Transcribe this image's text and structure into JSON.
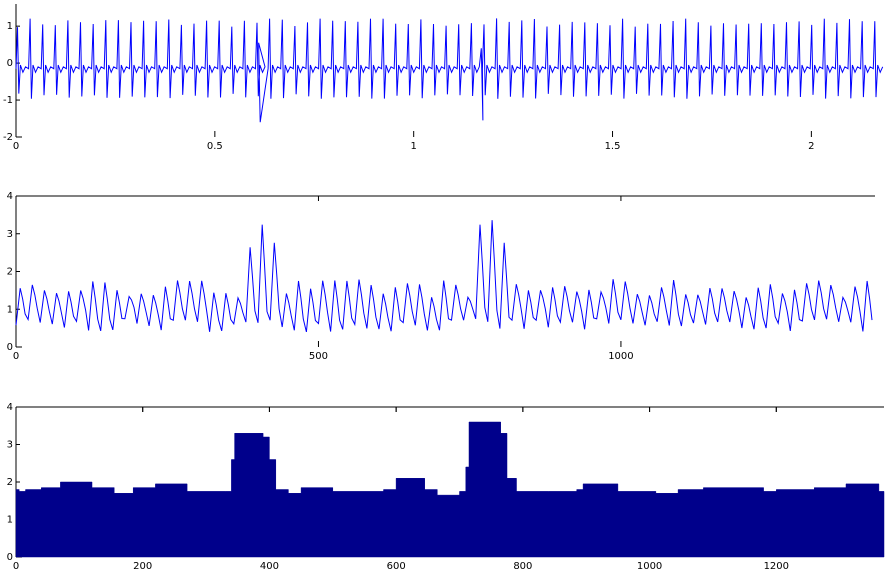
{
  "style": {
    "line_color": "#0000ff",
    "fill_color": "#00008b",
    "axis_color": "#000000",
    "background": "#ffffff"
  },
  "chart_data": [
    {
      "type": "line",
      "title": "",
      "xlabel": "",
      "ylabel": "",
      "xlim": [
        0,
        2.16
      ],
      "ylim": [
        -2,
        1.6
      ],
      "xticks": [
        0,
        0.5,
        1,
        1.5,
        2
      ],
      "xtick_labels": [
        "0",
        "0.5",
        "1",
        "1.5",
        "2"
      ],
      "yticks": [
        -2,
        -1,
        0,
        1
      ],
      "ytick_labels": [
        "-2",
        "-1",
        "0",
        "1"
      ],
      "grid": false,
      "signal": {
        "beat_period": 0.0317,
        "peak": 1.1,
        "trough": -0.9,
        "baseline": -0.15,
        "anomalies": [
          {
            "x": 0.61,
            "min": -1.6,
            "max": 0.55
          },
          {
            "x": 1.17,
            "min": -1.55,
            "max": 0.4
          }
        ]
      }
    },
    {
      "type": "line",
      "title": "",
      "xlabel": "",
      "ylabel": "",
      "xlim": [
        0,
        1420
      ],
      "ylim": [
        0,
        4
      ],
      "xticks": [
        0,
        500,
        1000
      ],
      "xtick_labels": [
        "0",
        "500",
        "1000"
      ],
      "yticks": [
        0,
        1,
        2,
        3,
        4
      ],
      "ytick_labels": [
        "0",
        "1",
        "2",
        "3",
        "4"
      ],
      "grid": false,
      "signal": {
        "beat_period": 20,
        "base_min": 0.4,
        "base_max": 1.7,
        "peaks": [
          {
            "x": 402,
            "height": 3.3
          },
          {
            "x": 772,
            "height": 3.6
          }
        ]
      }
    },
    {
      "type": "area",
      "title": "",
      "xlabel": "",
      "ylabel": "",
      "xlim": [
        0,
        1370
      ],
      "ylim": [
        0,
        4
      ],
      "xticks": [
        0,
        200,
        400,
        600,
        800,
        1000,
        1200
      ],
      "xtick_labels": [
        "0",
        "200",
        "400",
        "600",
        "800",
        "1000",
        "1200"
      ],
      "yticks": [
        0,
        1,
        2,
        3,
        4
      ],
      "ytick_labels": [
        "0",
        "1",
        "2",
        "3",
        "4"
      ],
      "grid": false,
      "steps": [
        [
          0,
          1.8
        ],
        [
          5,
          1.75
        ],
        [
          15,
          1.8
        ],
        [
          40,
          1.85
        ],
        [
          70,
          2.0
        ],
        [
          120,
          1.85
        ],
        [
          155,
          1.7
        ],
        [
          185,
          1.85
        ],
        [
          220,
          1.95
        ],
        [
          270,
          1.75
        ],
        [
          330,
          1.75
        ],
        [
          340,
          2.6
        ],
        [
          345,
          3.3
        ],
        [
          390,
          3.2
        ],
        [
          400,
          2.6
        ],
        [
          410,
          1.8
        ],
        [
          430,
          1.7
        ],
        [
          450,
          1.85
        ],
        [
          500,
          1.75
        ],
        [
          580,
          1.8
        ],
        [
          600,
          2.1
        ],
        [
          645,
          1.8
        ],
        [
          665,
          1.65
        ],
        [
          700,
          1.75
        ],
        [
          710,
          2.4
        ],
        [
          715,
          3.6
        ],
        [
          765,
          3.3
        ],
        [
          775,
          2.1
        ],
        [
          790,
          1.75
        ],
        [
          840,
          1.75
        ],
        [
          885,
          1.8
        ],
        [
          895,
          1.95
        ],
        [
          950,
          1.75
        ],
        [
          1010,
          1.7
        ],
        [
          1045,
          1.8
        ],
        [
          1085,
          1.85
        ],
        [
          1180,
          1.75
        ],
        [
          1200,
          1.8
        ],
        [
          1260,
          1.85
        ],
        [
          1310,
          1.95
        ],
        [
          1362,
          1.75
        ],
        [
          1370,
          1.75
        ]
      ]
    }
  ]
}
